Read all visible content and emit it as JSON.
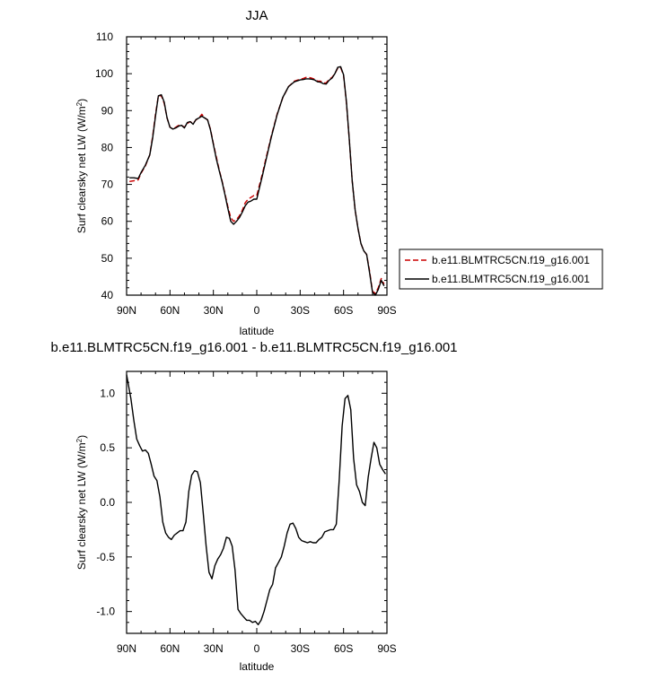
{
  "chart_data": [
    {
      "type": "line",
      "title": "JJA",
      "xlabel": "latitude",
      "ylabel": "Surf clearsky net LW (W/m²)",
      "xlim": [
        90,
        -90
      ],
      "ylim": [
        40,
        110
      ],
      "x_ticks": [
        90,
        60,
        30,
        0,
        -30,
        -60,
        -90
      ],
      "x_tick_labels": [
        "90N",
        "60N",
        "30N",
        "0",
        "30S",
        "60S",
        "90S"
      ],
      "y_ticks": [
        40,
        50,
        60,
        70,
        80,
        90,
        100,
        110
      ],
      "y_tick_labels": [
        "40",
        "50",
        "60",
        "70",
        "80",
        "90",
        "100",
        "110"
      ],
      "legend_position": "right",
      "series": [
        {
          "name": "b.e11.BLMTRC5CN.f19_g16.001",
          "color": "#cc0000",
          "dash": "dashed",
          "x": [
            88,
            85,
            82,
            80,
            77,
            74,
            72,
            70,
            68,
            66,
            64,
            62,
            60,
            58,
            56,
            54,
            52,
            50,
            48,
            46,
            44,
            42,
            40,
            38,
            36,
            34,
            32,
            30,
            28,
            26,
            24,
            22,
            20,
            18,
            16,
            14,
            12,
            10,
            8,
            6,
            4,
            2,
            0,
            -2,
            -4,
            -6,
            -10,
            -14,
            -18,
            -22,
            -26,
            -30,
            -32,
            -34,
            -36,
            -38,
            -40,
            -42,
            -44,
            -46,
            -48,
            -50,
            -52,
            -54,
            -56,
            -58,
            -60,
            -62,
            -64,
            -66,
            -68,
            -70,
            -72,
            -74,
            -76,
            -78,
            -80,
            -82,
            -84,
            -86,
            -88
          ],
          "y": [
            70.8,
            71.0,
            71.2,
            73.0,
            75.0,
            78.0,
            83.0,
            89.0,
            94.0,
            94.0,
            92.0,
            88.0,
            85.5,
            85.0,
            85.5,
            86.0,
            86.0,
            85.5,
            86.5,
            87.0,
            86.5,
            87.5,
            88.0,
            89.0,
            88.0,
            87.5,
            85.0,
            81.0,
            77.5,
            74.0,
            71.0,
            67.5,
            64.0,
            61.0,
            60.0,
            60.5,
            61.5,
            63.0,
            65.0,
            66.0,
            66.5,
            67.0,
            67.0,
            70.0,
            73.0,
            76.5,
            83.0,
            89.0,
            93.5,
            96.5,
            98.0,
            98.5,
            98.7,
            99.0,
            99.0,
            98.8,
            98.5,
            98.0,
            98.0,
            97.5,
            97.5,
            98.5,
            99.0,
            100.0,
            101.5,
            101.7,
            99.5,
            92.0,
            82.0,
            71.0,
            63.0,
            58.0,
            54.0,
            52.0,
            51.0,
            46.5,
            41.0,
            40.5,
            42.0,
            44.5,
            43.0
          ]
        },
        {
          "name": "b.e11.BLMTRC5CN.f19_g16.001",
          "color": "#000000",
          "dash": "solid",
          "x": [
            88,
            85,
            82,
            80,
            77,
            74,
            72,
            70,
            68,
            66,
            64,
            62,
            60,
            58,
            56,
            54,
            52,
            50,
            48,
            46,
            44,
            42,
            40,
            38,
            36,
            34,
            32,
            30,
            28,
            26,
            24,
            22,
            20,
            18,
            16,
            14,
            12,
            10,
            8,
            6,
            4,
            2,
            0,
            -2,
            -4,
            -6,
            -10,
            -14,
            -18,
            -22,
            -26,
            -30,
            -32,
            -34,
            -36,
            -38,
            -40,
            -42,
            -44,
            -46,
            -48,
            -50,
            -52,
            -54,
            -56,
            -58,
            -60,
            -62,
            -64,
            -66,
            -68,
            -70,
            -72,
            -74,
            -76,
            -78,
            -80,
            -82,
            -84,
            -86,
            -88
          ],
          "y": [
            71.8,
            71.8,
            71.6,
            73.2,
            75.2,
            78.0,
            82.5,
            88.5,
            94.0,
            94.3,
            92.3,
            88.0,
            85.5,
            85.0,
            85.3,
            85.8,
            86.0,
            85.3,
            86.8,
            87.0,
            86.3,
            87.6,
            88.0,
            88.5,
            88.0,
            87.5,
            84.8,
            80.8,
            77.0,
            73.8,
            70.8,
            67.2,
            63.5,
            60.0,
            59.2,
            60.0,
            61.0,
            62.5,
            64.2,
            65.2,
            65.5,
            66.0,
            66.0,
            69.3,
            72.5,
            76.0,
            82.7,
            88.8,
            93.6,
            96.5,
            97.8,
            98.3,
            98.4,
            98.6,
            98.6,
            98.5,
            98.3,
            97.8,
            97.7,
            97.3,
            97.2,
            98.2,
            98.8,
            100.0,
            101.7,
            101.9,
            99.7,
            92.3,
            82.0,
            71.0,
            63.0,
            58.0,
            54.0,
            52.0,
            51.0,
            46.0,
            40.8,
            40.0,
            41.5,
            44.0,
            42.5
          ]
        }
      ]
    },
    {
      "type": "line",
      "title": "b.e11.BLMTRC5CN.f19_g16.001 - b.e11.BLMTRC5CN.f19_g16.001",
      "xlabel": "latitude",
      "ylabel": "Surf clearsky net LW (W/m²)",
      "xlim": [
        90,
        -90
      ],
      "ylim": [
        -1.2,
        1.2
      ],
      "x_ticks": [
        90,
        60,
        30,
        0,
        -30,
        -60,
        -90
      ],
      "x_tick_labels": [
        "90N",
        "60N",
        "30N",
        "0",
        "30S",
        "60S",
        "90S"
      ],
      "y_ticks": [
        -1.0,
        -0.5,
        0.0,
        0.5,
        1.0
      ],
      "y_tick_labels": [
        "-1.0",
        "-0.5",
        "0.0",
        "0.5",
        "1.0"
      ],
      "series": [
        {
          "color": "#000000",
          "dash": "solid",
          "x": [
            90,
            87,
            85,
            83,
            81,
            79,
            77,
            75,
            73,
            71,
            69,
            67,
            65,
            63,
            61,
            59,
            57,
            55,
            53,
            51,
            49,
            47,
            45,
            43,
            41,
            39,
            37,
            35,
            33,
            31,
            29,
            27,
            25,
            23,
            21,
            19,
            17,
            15,
            13,
            11,
            9,
            7,
            5,
            3,
            1,
            -1,
            -3,
            -5,
            -7,
            -9,
            -11,
            -13,
            -15,
            -17,
            -19,
            -21,
            -23,
            -25,
            -27,
            -29,
            -31,
            -33,
            -35,
            -37,
            -39,
            -41,
            -43,
            -45,
            -47,
            -49,
            -51,
            -53,
            -55,
            -57,
            -59,
            -61,
            -63,
            -65,
            -67,
            -69,
            -71,
            -73,
            -75,
            -77,
            -79,
            -81,
            -83,
            -85,
            -87,
            -89
          ],
          "y": [
            1.17,
            0.95,
            0.75,
            0.58,
            0.52,
            0.47,
            0.48,
            0.45,
            0.35,
            0.24,
            0.2,
            0.05,
            -0.18,
            -0.28,
            -0.32,
            -0.34,
            -0.3,
            -0.28,
            -0.26,
            -0.26,
            -0.18,
            0.1,
            0.25,
            0.29,
            0.28,
            0.18,
            -0.1,
            -0.4,
            -0.64,
            -0.7,
            -0.58,
            -0.52,
            -0.48,
            -0.42,
            -0.32,
            -0.33,
            -0.4,
            -0.62,
            -0.98,
            -1.02,
            -1.05,
            -1.08,
            -1.08,
            -1.1,
            -1.09,
            -1.12,
            -1.08,
            -1.0,
            -0.9,
            -0.8,
            -0.75,
            -0.6,
            -0.55,
            -0.5,
            -0.4,
            -0.28,
            -0.2,
            -0.19,
            -0.24,
            -0.32,
            -0.35,
            -0.36,
            -0.37,
            -0.36,
            -0.37,
            -0.37,
            -0.34,
            -0.32,
            -0.27,
            -0.26,
            -0.25,
            -0.25,
            -0.2,
            0.2,
            0.7,
            0.95,
            0.98,
            0.85,
            0.4,
            0.16,
            0.1,
            0.0,
            -0.03,
            0.23,
            0.4,
            0.55,
            0.5,
            0.35,
            0.3,
            0.26
          ]
        }
      ]
    }
  ]
}
